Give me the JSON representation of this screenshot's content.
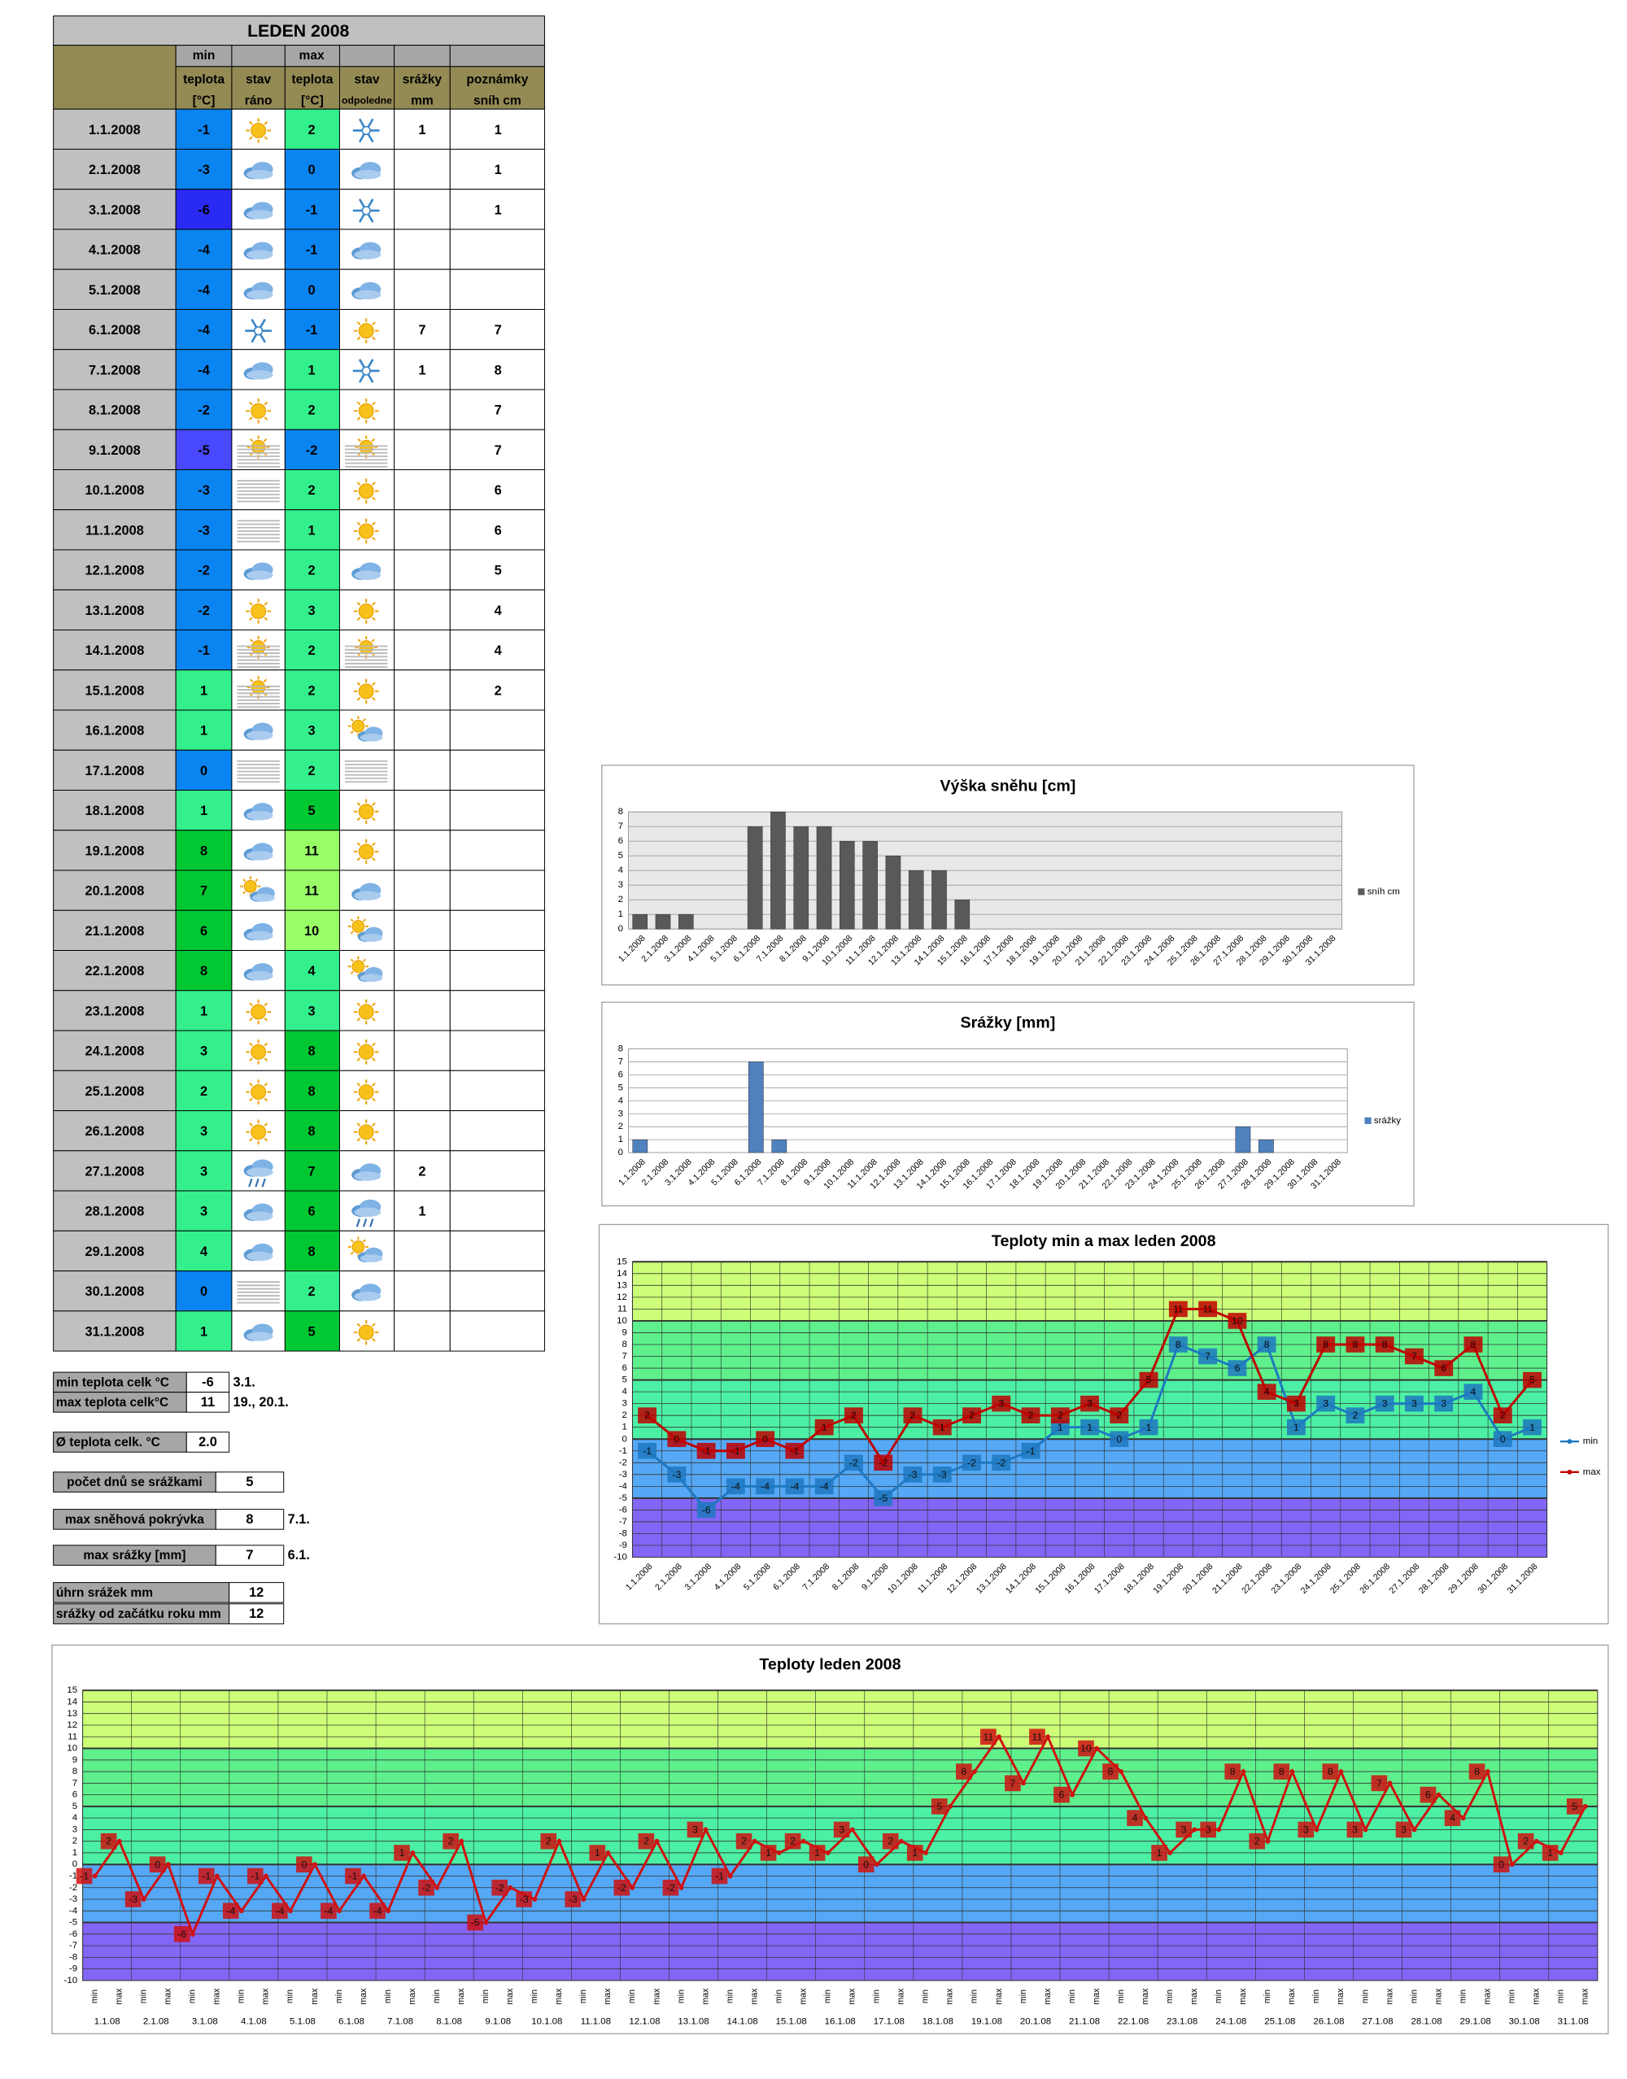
{
  "table": {
    "title": "LEDEN 2008",
    "header_top": [
      "min",
      "max"
    ],
    "headers": [
      [
        "teplota",
        "[°C]"
      ],
      [
        "stav",
        "ráno"
      ],
      [
        "teplota",
        "[°C]"
      ],
      [
        "stav",
        "odpoledne"
      ],
      [
        "srážky",
        "mm"
      ],
      [
        "poznámky",
        "sníh cm"
      ]
    ],
    "rows": [
      [
        "1.1.2008",
        -1,
        2,
        1,
        1
      ],
      [
        "2.1.2008",
        -3,
        0,
        null,
        1
      ],
      [
        "3.1.2008",
        -6,
        -1,
        null,
        1
      ],
      [
        "4.1.2008",
        -4,
        -1,
        null,
        null
      ],
      [
        "5.1.2008",
        -4,
        0,
        null,
        null
      ],
      [
        "6.1.2008",
        -4,
        -1,
        7,
        7
      ],
      [
        "7.1.2008",
        -4,
        1,
        1,
        8
      ],
      [
        "8.1.2008",
        -2,
        2,
        null,
        7
      ],
      [
        "9.1.2008",
        -5,
        -2,
        null,
        7
      ],
      [
        "10.1.2008",
        -3,
        2,
        null,
        6
      ],
      [
        "11.1.2008",
        -3,
        1,
        null,
        6
      ],
      [
        "12.1.2008",
        -2,
        2,
        null,
        5
      ],
      [
        "13.1.2008",
        -2,
        3,
        null,
        4
      ],
      [
        "14.1.2008",
        -1,
        2,
        null,
        4
      ],
      [
        "15.1.2008",
        1,
        2,
        null,
        2
      ],
      [
        "16.1.2008",
        1,
        3,
        null,
        null
      ],
      [
        "17.1.2008",
        0,
        2,
        null,
        null
      ],
      [
        "18.1.2008",
        1,
        5,
        null,
        null
      ],
      [
        "19.1.2008",
        8,
        11,
        null,
        null
      ],
      [
        "20.1.2008",
        7,
        11,
        null,
        null
      ],
      [
        "21.1.2008",
        6,
        10,
        null,
        null
      ],
      [
        "22.1.2008",
        8,
        4,
        null,
        null
      ],
      [
        "23.1.2008",
        1,
        3,
        null,
        null
      ],
      [
        "24.1.2008",
        3,
        8,
        null,
        null
      ],
      [
        "25.1.2008",
        2,
        8,
        null,
        null
      ],
      [
        "26.1.2008",
        3,
        8,
        null,
        null
      ],
      [
        "27.1.2008",
        3,
        7,
        2,
        null
      ],
      [
        "28.1.2008",
        3,
        6,
        1,
        null
      ],
      [
        "29.1.2008",
        4,
        8,
        null,
        null
      ],
      [
        "30.1.2008",
        0,
        2,
        null,
        null
      ],
      [
        "31.1.2008",
        1,
        5,
        null,
        null
      ]
    ]
  },
  "summary": [
    {
      "label": "min teplota celk °C",
      "value": -6,
      "note": "3.1."
    },
    {
      "label": "max teplota celk°C",
      "value": 11,
      "note": "19., 20.1."
    },
    {
      "label": "Ø teplota celk. °C",
      "value": "2.0"
    },
    {
      "label": "počet dnů se srážkami",
      "value": 5
    },
    {
      "label": "max sněhová pokrývka",
      "value": 8,
      "note": "7.1."
    },
    {
      "label": "max srážky [mm]",
      "value": 7,
      "note": "6.1."
    },
    {
      "label": "úhrn srážek  mm",
      "value": 12
    },
    {
      "label": "srážky od začátku roku mm",
      "value": 12
    }
  ],
  "chart_data": [
    {
      "type": "bar",
      "title": "Výška sněhu [cm]",
      "categories": [
        "1.1.2008",
        "2.1.2008",
        "3.1.2008",
        "4.1.2008",
        "5.1.2008",
        "6.1.2008",
        "7.1.2008",
        "8.1.2008",
        "9.1.2008",
        "10.1.2008",
        "11.1.2008",
        "12.1.2008",
        "13.1.2008",
        "14.1.2008",
        "15.1.2008",
        "16.1.2008",
        "17.1.2008",
        "18.1.2008",
        "19.1.2008",
        "20.1.2008",
        "21.1.2008",
        "22.1.2008",
        "23.1.2008",
        "24.1.2008",
        "25.1.2008",
        "26.1.2008",
        "27.1.2008",
        "28.1.2008",
        "29.1.2008",
        "30.1.2008",
        "31.1.2008"
      ],
      "series": [
        {
          "name": "sníh cm",
          "color": "#595959",
          "values": [
            1,
            1,
            1,
            null,
            null,
            7,
            8,
            7,
            7,
            6,
            6,
            5,
            4,
            4,
            2,
            null,
            null,
            null,
            null,
            null,
            null,
            null,
            null,
            null,
            null,
            null,
            null,
            null,
            null,
            null,
            null
          ]
        }
      ],
      "ylim": [
        0,
        8
      ],
      "yticks": [
        0,
        1,
        2,
        3,
        4,
        5,
        6,
        7,
        8
      ],
      "grid": true,
      "legend": "right"
    },
    {
      "type": "bar",
      "title": "Srážky [mm]",
      "categories": [
        "1.1.2008",
        "2.1.2008",
        "3.1.2008",
        "4.1.2008",
        "5.1.2008",
        "6.1.2008",
        "7.1.2008",
        "8.1.2008",
        "9.1.2008",
        "10.1.2008",
        "11.1.2008",
        "12.1.2008",
        "13.1.2008",
        "14.1.2008",
        "15.1.2008",
        "16.1.2008",
        "17.1.2008",
        "18.1.2008",
        "19.1.2008",
        "20.1.2008",
        "21.1.2008",
        "22.1.2008",
        "23.1.2008",
        "24.1.2008",
        "25.1.2008",
        "26.1.2008",
        "27.1.2008",
        "28.1.2008",
        "29.1.2008",
        "30.1.2008",
        "31.1.2008"
      ],
      "series": [
        {
          "name": "srážky",
          "color": "#4f81bd",
          "values": [
            1,
            null,
            null,
            null,
            null,
            7,
            1,
            null,
            null,
            null,
            null,
            null,
            null,
            null,
            null,
            null,
            null,
            null,
            null,
            null,
            null,
            null,
            null,
            null,
            null,
            null,
            2,
            1,
            null,
            null,
            null
          ]
        }
      ],
      "ylim": [
        0,
        8
      ],
      "yticks": [
        0,
        1,
        2,
        3,
        4,
        5,
        6,
        7,
        8
      ],
      "grid": true,
      "legend": "right"
    },
    {
      "type": "line",
      "title": "Teploty min a max leden 2008",
      "categories": [
        "1.1.2008",
        "2.1.2008",
        "3.1.2008",
        "4.1.2008",
        "5.1.2008",
        "6.1.2008",
        "7.1.2008",
        "8.1.2008",
        "9.1.2008",
        "10.1.2008",
        "11.1.2008",
        "12.1.2008",
        "13.1.2008",
        "14.1.2008",
        "15.1.2008",
        "16.1.2008",
        "17.1.2008",
        "18.1.2008",
        "19.1.2008",
        "20.1.2008",
        "21.1.2008",
        "22.1.2008",
        "23.1.2008",
        "24.1.2008",
        "25.1.2008",
        "26.1.2008",
        "27.1.2008",
        "28.1.2008",
        "29.1.2008",
        "30.1.2008",
        "31.1.2008"
      ],
      "series": [
        {
          "name": "min",
          "color": "#1f78c0",
          "values": [
            -1,
            -3,
            -6,
            -4,
            -4,
            -4,
            -4,
            -2,
            -5,
            -3,
            -3,
            -2,
            -2,
            -1,
            1,
            1,
            0,
            1,
            8,
            7,
            6,
            8,
            1,
            3,
            2,
            3,
            3,
            3,
            4,
            0,
            1
          ]
        },
        {
          "name": "max",
          "color": "#c00000",
          "values": [
            2,
            0,
            -1,
            -1,
            0,
            -1,
            1,
            2,
            -2,
            2,
            1,
            2,
            3,
            2,
            2,
            3,
            2,
            5,
            11,
            11,
            10,
            4,
            3,
            8,
            8,
            8,
            7,
            6,
            8,
            2,
            5
          ]
        }
      ],
      "ylim": [
        -10,
        15
      ],
      "yticks": [
        -10,
        -9,
        -8,
        -7,
        -6,
        -5,
        -4,
        -3,
        -2,
        -1,
        0,
        1,
        2,
        3,
        4,
        5,
        6,
        7,
        8,
        9,
        10,
        11,
        12,
        13,
        14,
        15
      ],
      "grid": true,
      "legend": "right",
      "data_labels": true,
      "bands": [
        {
          "from": -10,
          "to": -5,
          "color": "#8366f5"
        },
        {
          "from": -5,
          "to": 0,
          "color": "#55a8f5"
        },
        {
          "from": 0,
          "to": 5,
          "color": "#4cf0a4"
        },
        {
          "from": 5,
          "to": 10,
          "color": "#5ef08c"
        },
        {
          "from": 10,
          "to": 15,
          "color": "#ccff77"
        }
      ]
    },
    {
      "type": "line",
      "title": "Teploty leden 2008",
      "categories": [
        "min",
        "max",
        "min",
        "max",
        "min",
        "max",
        "min",
        "max",
        "min",
        "max",
        "min",
        "max",
        "min",
        "max",
        "min",
        "max",
        "min",
        "max",
        "min",
        "max",
        "min",
        "max",
        "min",
        "max",
        "min",
        "max",
        "min",
        "max",
        "min",
        "max",
        "min",
        "max",
        "min",
        "max",
        "min",
        "max",
        "min",
        "max",
        "min",
        "max",
        "min",
        "max",
        "min",
        "max",
        "min",
        "max",
        "min",
        "max",
        "min",
        "max",
        "min",
        "max",
        "min",
        "max",
        "min",
        "max",
        "min",
        "max",
        "min",
        "max",
        "min",
        "max"
      ],
      "groups": [
        "1.1.08",
        "2.1.08",
        "3.1.08",
        "4.1.08",
        "5.1.08",
        "6.1.08",
        "7.1.08",
        "8.1.08",
        "9.1.08",
        "10.1.08",
        "11.1.08",
        "12.1.08",
        "13.1.08",
        "14.1.08",
        "15.1.08",
        "16.1.08",
        "17.1.08",
        "18.1.08",
        "19.1.08",
        "20.1.08",
        "21.1.08",
        "22.1.08",
        "23.1.08",
        "24.1.08",
        "25.1.08",
        "26.1.08",
        "27.1.08",
        "28.1.08",
        "29.1.08",
        "30.1.08",
        "31.1.08"
      ],
      "series": [
        {
          "color": "#d01010",
          "values": [
            -1,
            2,
            -3,
            0,
            -6,
            -1,
            -4,
            -1,
            -4,
            0,
            -4,
            -1,
            -4,
            1,
            -2,
            2,
            -5,
            -2,
            -3,
            2,
            -3,
            1,
            -2,
            2,
            -2,
            3,
            -1,
            2,
            1,
            2,
            1,
            3,
            0,
            2,
            1,
            5,
            8,
            11,
            7,
            11,
            6,
            10,
            8,
            4,
            1,
            3,
            3,
            8,
            2,
            8,
            3,
            8,
            3,
            7,
            3,
            6,
            4,
            8,
            0,
            2,
            1,
            5
          ]
        }
      ],
      "ylim": [
        -10,
        15
      ],
      "yticks": [
        -10,
        -9,
        -8,
        -7,
        -6,
        -5,
        -4,
        -3,
        -2,
        -1,
        0,
        1,
        2,
        3,
        4,
        5,
        6,
        7,
        8,
        9,
        10,
        11,
        12,
        13,
        14,
        15
      ],
      "grid": true,
      "data_labels": true,
      "bands": [
        {
          "from": -10,
          "to": -5,
          "color": "#8366f5"
        },
        {
          "from": -5,
          "to": 0,
          "color": "#55a8f5"
        },
        {
          "from": 0,
          "to": 5,
          "color": "#4cf0a4"
        },
        {
          "from": 5,
          "to": 10,
          "color": "#5ef08c"
        },
        {
          "from": 10,
          "to": 15,
          "color": "#ccff77"
        }
      ]
    }
  ]
}
